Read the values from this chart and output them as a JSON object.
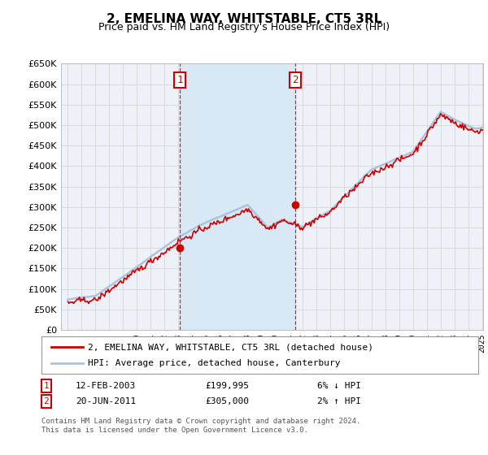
{
  "title": "2, EMELINA WAY, WHITSTABLE, CT5 3RL",
  "subtitle": "Price paid vs. HM Land Registry's House Price Index (HPI)",
  "legend_line1": "2, EMELINA WAY, WHITSTABLE, CT5 3RL (detached house)",
  "legend_line2": "HPI: Average price, detached house, Canterbury",
  "sale1_date": "12-FEB-2003",
  "sale1_price": 199995,
  "sale1_note": "6% ↓ HPI",
  "sale2_date": "20-JUN-2011",
  "sale2_price": 305000,
  "sale2_note": "2% ↑ HPI",
  "footnote1": "Contains HM Land Registry data © Crown copyright and database right 2024.",
  "footnote2": "This data is licensed under the Open Government Licence v3.0.",
  "ylim": [
    0,
    650000
  ],
  "hpi_color": "#aac4e0",
  "property_color": "#cc0000",
  "background_color": "#ffffff",
  "plot_bg_color": "#eef2f8",
  "grid_color": "#d0d0d0",
  "marker_box_color": "#cc0000",
  "dashed_line_color": "#cc0000",
  "highlight_color": "#d8e8f5",
  "sale1_x": 2003.12,
  "sale2_x": 2011.47,
  "xmin": 1995.0,
  "xmax": 2025.08
}
